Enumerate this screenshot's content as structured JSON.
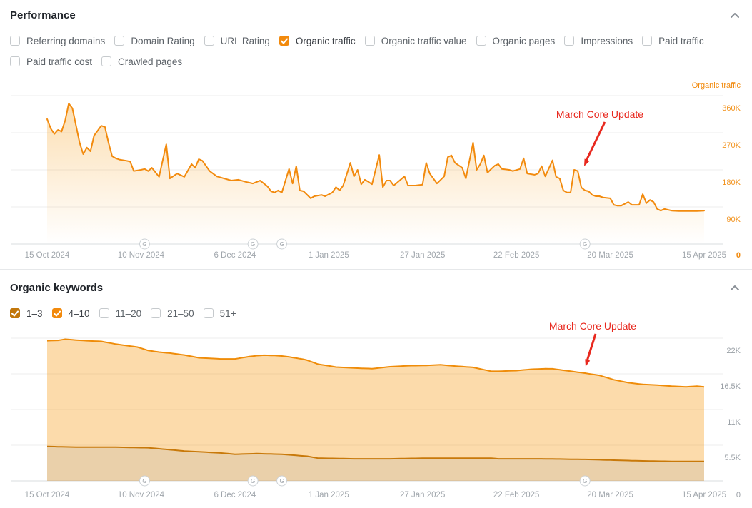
{
  "performance": {
    "title": "Performance",
    "collapse_icon": "chevron-up",
    "metrics": [
      {
        "label": "Referring domains",
        "checked": false
      },
      {
        "label": "Domain Rating",
        "checked": false
      },
      {
        "label": "URL Rating",
        "checked": false
      },
      {
        "label": "Organic traffic",
        "checked": true,
        "check_color": "#f28a0d"
      },
      {
        "label": "Organic traffic value",
        "checked": false
      },
      {
        "label": "Organic pages",
        "checked": false
      },
      {
        "label": "Impressions",
        "checked": false
      },
      {
        "label": "Paid traffic",
        "checked": false
      },
      {
        "label": "Paid traffic cost",
        "checked": false
      },
      {
        "label": "Crawled pages",
        "checked": false
      }
    ]
  },
  "organic_keywords": {
    "title": "Organic keywords",
    "collapse_icon": "chevron-up",
    "filters": [
      {
        "label": "1–3",
        "checked": true,
        "check_color": "#c2770b"
      },
      {
        "label": "4–10",
        "checked": true,
        "check_color": "#f28a0d"
      },
      {
        "label": "11–20",
        "checked": false
      },
      {
        "label": "21–50",
        "checked": false
      },
      {
        "label": "51+",
        "checked": false
      }
    ]
  },
  "colors": {
    "accent_orange": "#f28a0d",
    "dark_orange": "#c2770b",
    "annotation_red": "#e8281e",
    "axis_label_gray": "#a0a6ac",
    "grid_gray": "#ededee"
  },
  "chart_data": [
    {
      "type": "area",
      "title": "Organic traffic",
      "axis_title_right": "Organic traffic",
      "value_unit": "K (thousands of visits)",
      "ylim": [
        0,
        405
      ],
      "grid": true,
      "legend_position": "none",
      "y_ticks": [
        {
          "label": "360K",
          "value": 360
        },
        {
          "label": "270K",
          "value": 270
        },
        {
          "label": "180K",
          "value": 180
        },
        {
          "label": "90K",
          "value": 90
        },
        {
          "label": "0",
          "value": 0,
          "bold": true
        }
      ],
      "x_ticks": [
        {
          "label": "15 Oct 2024",
          "day": 0
        },
        {
          "label": "10 Nov 2024",
          "day": 26
        },
        {
          "label": "6 Dec 2024",
          "day": 52
        },
        {
          "label": "1 Jan 2025",
          "day": 78
        },
        {
          "label": "27 Jan 2025",
          "day": 104
        },
        {
          "label": "22 Feb 2025",
          "day": 130
        },
        {
          "label": "20 Mar 2025",
          "day": 156
        },
        {
          "label": "15 Apr 2025",
          "day": 182
        }
      ],
      "google_update_markers": {
        "letter": "G",
        "days": [
          27,
          57,
          65,
          149
        ]
      },
      "annotation": {
        "text": "March Core Update",
        "color": "#e8281e",
        "points_to_day": 149
      },
      "series": [
        {
          "name": "Organic traffic",
          "color": "#f28a0d",
          "points_day_value": [
            [
              0,
              303
            ],
            [
              1,
              280
            ],
            [
              2,
              267
            ],
            [
              3,
              277
            ],
            [
              4,
              273
            ],
            [
              5,
              300
            ],
            [
              6,
              341
            ],
            [
              7,
              329
            ],
            [
              9,
              246
            ],
            [
              10,
              218
            ],
            [
              11,
              234
            ],
            [
              12,
              225
            ],
            [
              13,
              263
            ],
            [
              15,
              287
            ],
            [
              16,
              284
            ],
            [
              17,
              246
            ],
            [
              18,
              213
            ],
            [
              19,
              208
            ],
            [
              20,
              205
            ],
            [
              22,
              202
            ],
            [
              23,
              200
            ],
            [
              24,
              177
            ],
            [
              26,
              180
            ],
            [
              27,
              182
            ],
            [
              28,
              177
            ],
            [
              29,
              185
            ],
            [
              31,
              163
            ],
            [
              33,
              242
            ],
            [
              34,
              159
            ],
            [
              36,
              171
            ],
            [
              38,
              163
            ],
            [
              40,
              194
            ],
            [
              41,
              185
            ],
            [
              42,
              206
            ],
            [
              43,
              202
            ],
            [
              45,
              177
            ],
            [
              47,
              164
            ],
            [
              49,
              159
            ],
            [
              51,
              154
            ],
            [
              53,
              156
            ],
            [
              55,
              151
            ],
            [
              57,
              147
            ],
            [
              59,
              154
            ],
            [
              61,
              140
            ],
            [
              62,
              128
            ],
            [
              63,
              125
            ],
            [
              64,
              130
            ],
            [
              65,
              125
            ],
            [
              67,
              182
            ],
            [
              68,
              147
            ],
            [
              69,
              189
            ],
            [
              70,
              130
            ],
            [
              71,
              128
            ],
            [
              73,
              111
            ],
            [
              74,
              116
            ],
            [
              76,
              119
            ],
            [
              77,
              116
            ],
            [
              79,
              125
            ],
            [
              80,
              138
            ],
            [
              81,
              130
            ],
            [
              82,
              142
            ],
            [
              84,
              197
            ],
            [
              85,
              164
            ],
            [
              86,
              180
            ],
            [
              87,
              145
            ],
            [
              88,
              156
            ],
            [
              89,
              151
            ],
            [
              90,
              145
            ],
            [
              92,
              216
            ],
            [
              93,
              138
            ],
            [
              94,
              154
            ],
            [
              95,
              154
            ],
            [
              96,
              142
            ],
            [
              99,
              164
            ],
            [
              100,
              142
            ],
            [
              102,
              142
            ],
            [
              104,
              144
            ],
            [
              105,
              197
            ],
            [
              106,
              171
            ],
            [
              108,
              147
            ],
            [
              110,
              164
            ],
            [
              111,
              211
            ],
            [
              112,
              215
            ],
            [
              113,
              197
            ],
            [
              115,
              185
            ],
            [
              116,
              159
            ],
            [
              118,
              246
            ],
            [
              119,
              180
            ],
            [
              120,
              194
            ],
            [
              121,
              215
            ],
            [
              122,
              173
            ],
            [
              123,
              182
            ],
            [
              124,
              190
            ],
            [
              125,
              194
            ],
            [
              126,
              182
            ],
            [
              128,
              180
            ],
            [
              129,
              177
            ],
            [
              131,
              182
            ],
            [
              132,
              208
            ],
            [
              133,
              171
            ],
            [
              135,
              168
            ],
            [
              136,
              171
            ],
            [
              137,
              189
            ],
            [
              138,
              164
            ],
            [
              140,
              203
            ],
            [
              141,
              163
            ],
            [
              142,
              159
            ],
            [
              143,
              130
            ],
            [
              144,
              125
            ],
            [
              145,
              125
            ],
            [
              146,
              180
            ],
            [
              147,
              177
            ],
            [
              148,
              137
            ],
            [
              149,
              130
            ],
            [
              150,
              128
            ],
            [
              151,
              119
            ],
            [
              152,
              116
            ],
            [
              153,
              116
            ],
            [
              154,
              113
            ],
            [
              156,
              111
            ],
            [
              157,
              95
            ],
            [
              158,
              93
            ],
            [
              159,
              93
            ],
            [
              161,
              102
            ],
            [
              162,
              95
            ],
            [
              164,
              95
            ],
            [
              165,
              121
            ],
            [
              166,
              99
            ],
            [
              167,
              107
            ],
            [
              168,
              102
            ],
            [
              169,
              85
            ],
            [
              170,
              81
            ],
            [
              171,
              85
            ],
            [
              173,
              81
            ],
            [
              175,
              80
            ],
            [
              177,
              80
            ],
            [
              179,
              80
            ],
            [
              180,
              80
            ],
            [
              182,
              81
            ]
          ]
        }
      ]
    },
    {
      "type": "stacked-area",
      "title": "Organic keywords by position",
      "value_unit": "K (thousands of keywords)",
      "ylim": [
        0,
        24.6
      ],
      "grid": true,
      "legend_position": "none",
      "y_ticks": [
        {
          "label": "22K",
          "value": 22
        },
        {
          "label": "16.5K",
          "value": 16.5
        },
        {
          "label": "11K",
          "value": 11
        },
        {
          "label": "5.5K",
          "value": 5.5
        },
        {
          "label": "0",
          "value": 0
        }
      ],
      "x_ticks": [
        {
          "label": "15 Oct 2024",
          "day": 0
        },
        {
          "label": "10 Nov 2024",
          "day": 26
        },
        {
          "label": "6 Dec 2024",
          "day": 52
        },
        {
          "label": "1 Jan 2025",
          "day": 78
        },
        {
          "label": "27 Jan 2025",
          "day": 104
        },
        {
          "label": "22 Feb 2025",
          "day": 130
        },
        {
          "label": "20 Mar 2025",
          "day": 156
        },
        {
          "label": "15 Apr 2025",
          "day": 182
        }
      ],
      "google_update_markers": {
        "letter": "G",
        "days": [
          27,
          57,
          65,
          149
        ]
      },
      "annotation": {
        "text": "March Core Update",
        "color": "#e8281e",
        "points_to_day": 149
      },
      "stacked": true,
      "series": [
        {
          "name": "1–3",
          "line_color": "#c8790a",
          "fill_color": "rgba(194,119,11,0.35)",
          "points_day_value": [
            [
              0,
              5.3
            ],
            [
              8,
              5.2
            ],
            [
              18,
              5.2
            ],
            [
              28,
              5.1
            ],
            [
              38,
              4.6
            ],
            [
              48,
              4.3
            ],
            [
              52,
              4.1
            ],
            [
              58,
              4.2
            ],
            [
              65,
              4.1
            ],
            [
              72,
              3.8
            ],
            [
              75,
              3.5
            ],
            [
              85,
              3.4
            ],
            [
              95,
              3.4
            ],
            [
              105,
              3.5
            ],
            [
              115,
              3.5
            ],
            [
              123,
              3.5
            ],
            [
              125,
              3.4
            ],
            [
              137,
              3.4
            ],
            [
              150,
              3.3
            ],
            [
              163,
              3.1
            ],
            [
              173,
              3.0
            ],
            [
              182,
              3.0
            ]
          ]
        },
        {
          "name": "4–10",
          "line_color": "#ef8c09",
          "fill_color": "rgba(245,147,0,0.33)",
          "stacked_on": "1–3",
          "points_day_value": [
            [
              0,
              16.3
            ],
            [
              3,
              16.4
            ],
            [
              5,
              16.6
            ],
            [
              8,
              16.5
            ],
            [
              11,
              16.4
            ],
            [
              15,
              16.3
            ],
            [
              19,
              15.9
            ],
            [
              22,
              15.7
            ],
            [
              25,
              15.5
            ],
            [
              28,
              15.0
            ],
            [
              31,
              14.9
            ],
            [
              34,
              14.9
            ],
            [
              38,
              14.8
            ],
            [
              42,
              14.5
            ],
            [
              45,
              14.5
            ],
            [
              48,
              14.5
            ],
            [
              52,
              14.7
            ],
            [
              56,
              15.0
            ],
            [
              60,
              15.2
            ],
            [
              63,
              15.2
            ],
            [
              67,
              15.1
            ],
            [
              71,
              14.9
            ],
            [
              75,
              14.5
            ],
            [
              80,
              14.1
            ],
            [
              85,
              14.0
            ],
            [
              90,
              13.9
            ],
            [
              95,
              14.2
            ],
            [
              100,
              14.3
            ],
            [
              105,
              14.3
            ],
            [
              109,
              14.4
            ],
            [
              113,
              14.2
            ],
            [
              118,
              14.0
            ],
            [
              123,
              13.4
            ],
            [
              125,
              13.5
            ],
            [
              130,
              13.6
            ],
            [
              134,
              13.8
            ],
            [
              138,
              13.9
            ],
            [
              140,
              13.9
            ],
            [
              143,
              13.7
            ],
            [
              146,
              13.5
            ],
            [
              149,
              13.3
            ],
            [
              153,
              13.0
            ],
            [
              157,
              12.4
            ],
            [
              161,
              12.0
            ],
            [
              165,
              11.8
            ],
            [
              170,
              11.7
            ],
            [
              173,
              11.6
            ],
            [
              177,
              11.5
            ],
            [
              180,
              11.6
            ],
            [
              182,
              11.5
            ]
          ]
        }
      ]
    }
  ]
}
